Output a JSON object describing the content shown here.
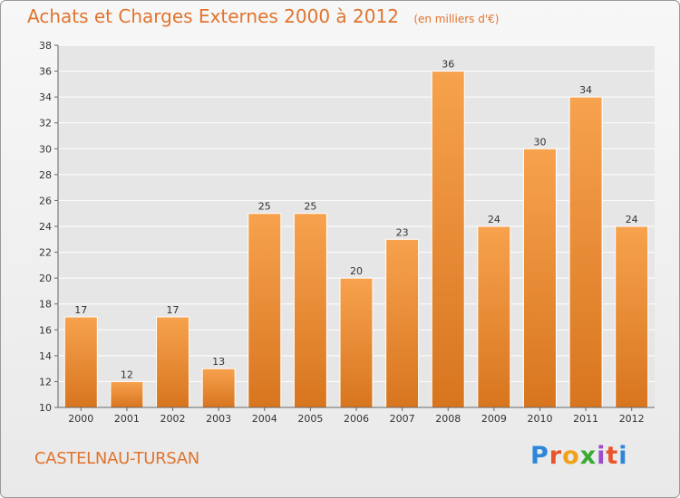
{
  "header": {
    "title": "Achats et Charges Externes 2000 à 2012",
    "subtitle": "(en milliers d'€)"
  },
  "footer": {
    "commune": "CASTELNAU-TURSAN",
    "logo_text": "Proxiti",
    "logo_colors": [
      "#2e86d9",
      "#e8552a",
      "#f0a11c",
      "#3aaa35",
      "#9b4dca",
      "#e8552a",
      "#2e86d9"
    ]
  },
  "colors": {
    "bar_light": "#f7a24e",
    "bar_dark": "#d8751f",
    "accent": "#e0742e",
    "grid": "#ffffff",
    "plot_bg": "#e6e6e6"
  },
  "chart_data": {
    "type": "bar",
    "title": "Achats et Charges Externes 2000 à 2012",
    "subtitle": "(en milliers d'€)",
    "categories": [
      "2000",
      "2001",
      "2002",
      "2003",
      "2004",
      "2005",
      "2006",
      "2007",
      "2008",
      "2009",
      "2010",
      "2011",
      "2012"
    ],
    "values": [
      17,
      12,
      17,
      13,
      25,
      25,
      20,
      23,
      36,
      24,
      30,
      34,
      24
    ],
    "ylim": [
      10,
      38
    ],
    "yticks": [
      10,
      12,
      14,
      16,
      18,
      20,
      22,
      24,
      26,
      28,
      30,
      32,
      34,
      36,
      38
    ],
    "grid": true,
    "data_labels": true
  }
}
